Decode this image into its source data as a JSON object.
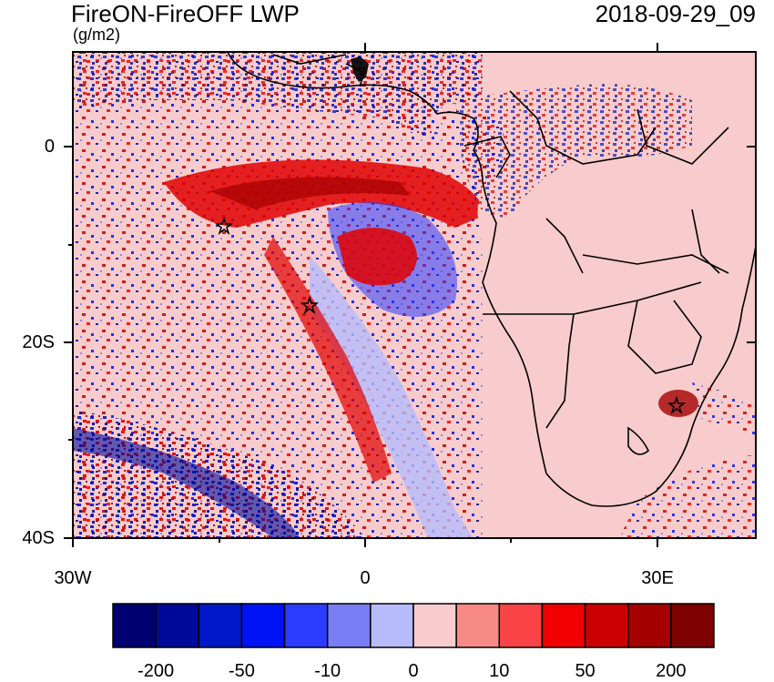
{
  "title": "FireON-FireOFF LWP",
  "units": "(g/m2)",
  "timestamp": "2018-09-29_09",
  "y_axis": {
    "labels": [
      "0",
      "20S",
      "40S"
    ]
  },
  "x_axis": {
    "labels": [
      "30W",
      "0",
      "30E"
    ]
  },
  "colorbar": {
    "colors": [
      "#000070",
      "#000a9a",
      "#0018c8",
      "#0012f6",
      "#2c3cff",
      "#7a7ef6",
      "#b7bbfb",
      "#f8cccc",
      "#f88a86",
      "#f84446",
      "#f00000",
      "#cd0000",
      "#a40000",
      "#7f0000"
    ],
    "labels": [
      "-200",
      "-50",
      "-10",
      "0",
      "10",
      "50",
      "200"
    ]
  },
  "markers": [
    "star",
    "star",
    "star"
  ]
}
